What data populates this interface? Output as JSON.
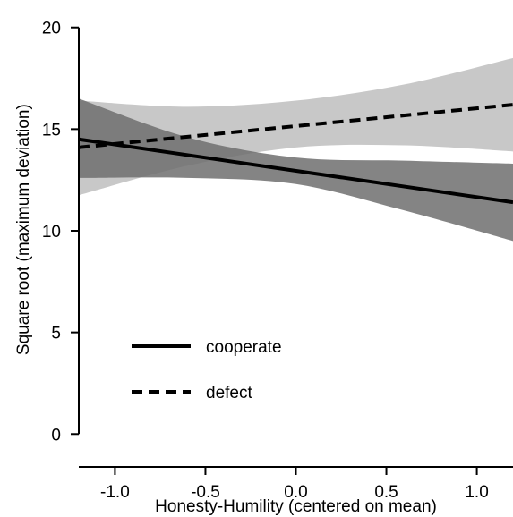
{
  "chart_data": {
    "type": "line",
    "title": "",
    "xlabel": "Honesty-Humility (centered on mean)",
    "ylabel": "Square root (maximum deviation)",
    "xlim": [
      -1.2,
      1.2
    ],
    "ylim": [
      -1,
      21
    ],
    "x_ticks": [
      -1.0,
      -0.5,
      0.0,
      0.5,
      1.0
    ],
    "x_tick_labels": [
      "-1.0",
      "-0.5",
      "0.0",
      "0.5",
      "1.0"
    ],
    "y_ticks": [
      0,
      5,
      10,
      15,
      20
    ],
    "y_tick_labels": [
      "0",
      "5",
      "10",
      "15",
      "20"
    ],
    "grid": false,
    "legend_position": "bottom-left",
    "series": [
      {
        "name": "cooperate",
        "line_style": "solid",
        "band_color": "#6e6e6e",
        "x": [
          -1.2,
          1.2
        ],
        "y": [
          14.5,
          11.4
        ],
        "ci_x": [
          -1.2,
          -0.6,
          0.0,
          0.6,
          1.2
        ],
        "ci_upper": [
          16.5,
          14.6,
          13.6,
          13.45,
          13.3
        ],
        "ci_lower": [
          12.6,
          12.6,
          12.3,
          11.0,
          9.5
        ]
      },
      {
        "name": "defect",
        "line_style": "dashed",
        "band_color": "#c8c8c8",
        "x": [
          -1.2,
          1.2
        ],
        "y": [
          14.1,
          16.2
        ],
        "ci_x": [
          -1.2,
          -0.6,
          0.0,
          0.6,
          1.2
        ],
        "ci_upper": [
          16.4,
          16.1,
          16.4,
          17.2,
          18.5
        ],
        "ci_lower": [
          11.75,
          13.2,
          14.1,
          14.2,
          13.9
        ]
      }
    ]
  }
}
